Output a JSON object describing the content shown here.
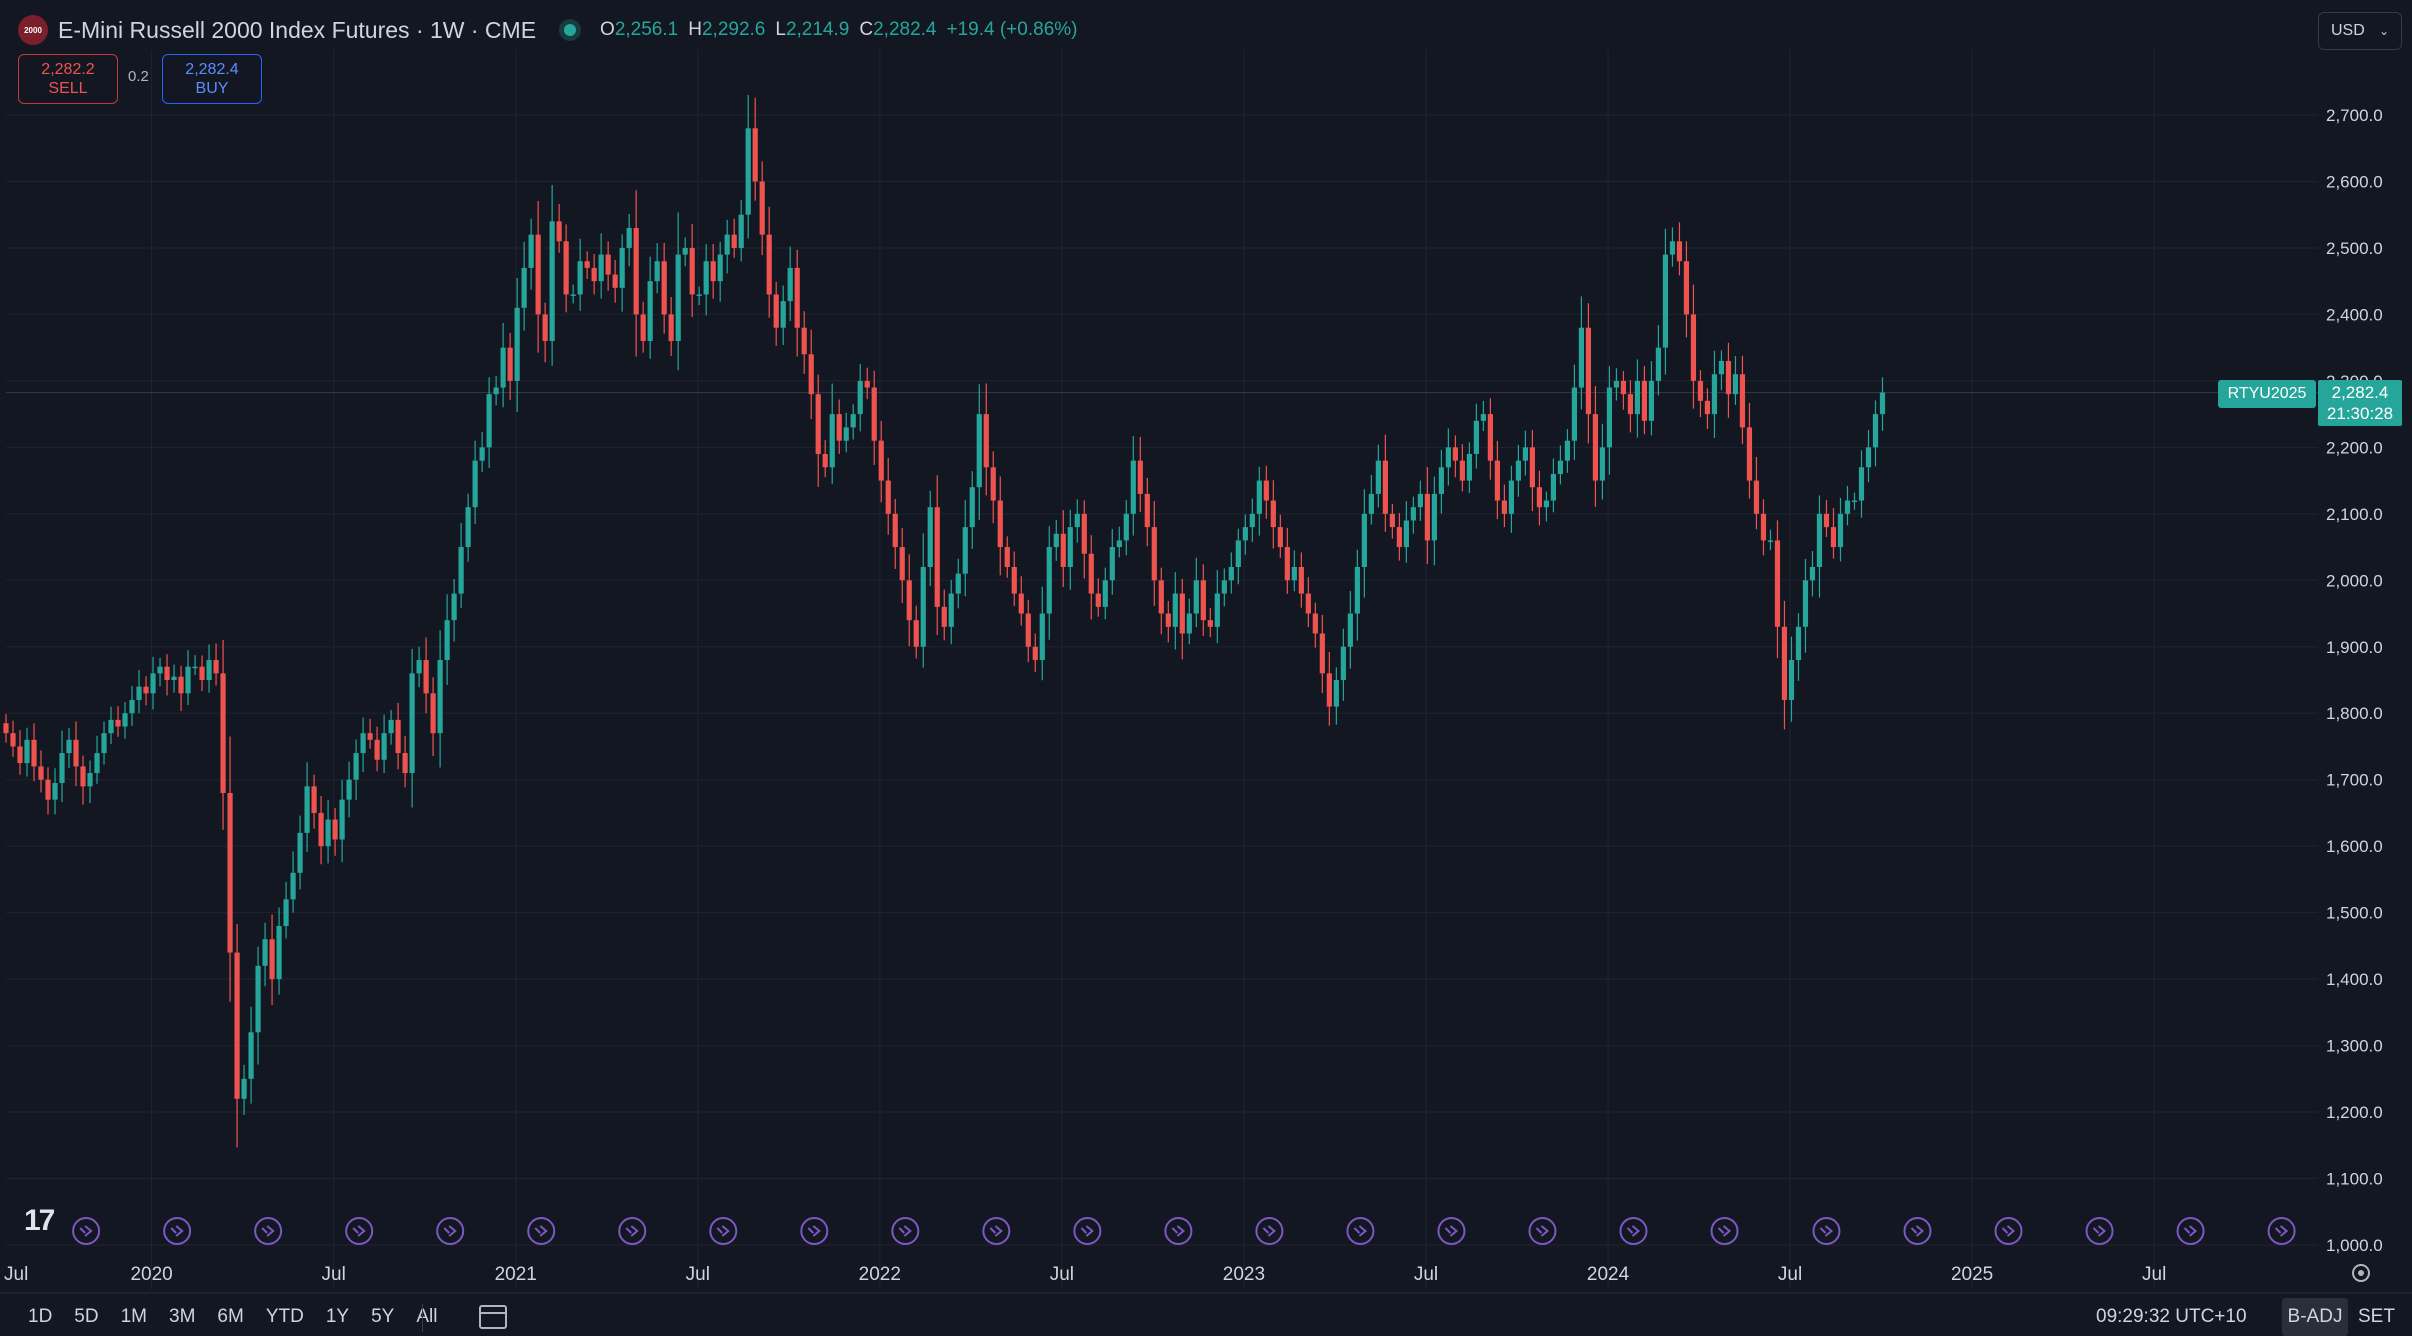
{
  "header": {
    "symbol_logo_text": "2000",
    "title": "E-Mini Russell 2000 Index Futures · 1W · CME",
    "ohlc": {
      "o_label": "O",
      "o_value": "2,256.1",
      "h_label": "H",
      "h_value": "2,292.6",
      "l_label": "L",
      "l_value": "2,214.9",
      "c_label": "C",
      "c_value": "2,282.4",
      "change": "+19.4 (+0.86%)"
    }
  },
  "trade": {
    "sell_price": "2,282.2",
    "sell_label": "SELL",
    "spread": "0.2",
    "buy_price": "2,282.4",
    "buy_label": "BUY"
  },
  "currency": "USD",
  "price_tag": {
    "symbol": "RTYU2025",
    "price": "2,282.4",
    "countdown": "21:30:28"
  },
  "bottom": {
    "ranges": [
      "1D",
      "5D",
      "1M",
      "3M",
      "6M",
      "YTD",
      "1Y",
      "5Y",
      "All"
    ],
    "time": "09:29:32 UTC+10",
    "adj": "B-ADJ",
    "session": "SET"
  },
  "colors": {
    "up": "#26a69a",
    "down": "#ef5350",
    "background": "#131722",
    "grid": "#1f2430",
    "event": "#7e57c2"
  },
  "chart_data": {
    "type": "candlestick",
    "interval": "1W",
    "ylim": [
      1000,
      2750
    ],
    "yticks": [
      1000,
      1100,
      1200,
      1300,
      1400,
      1500,
      1600,
      1700,
      1800,
      1900,
      2000,
      2100,
      2200,
      2300,
      2400,
      2500,
      2600,
      2700
    ],
    "ytick_labels": [
      "1,000.0",
      "1,100.0",
      "1,200.0",
      "1,300.0",
      "1,400.0",
      "1,500.0",
      "1,600.0",
      "1,700.0",
      "1,800.0",
      "1,900.0",
      "2,000.0",
      "2,100.0",
      "2,200.0",
      "2,300.0",
      "2,400.0",
      "2,500.0",
      "2,600.0",
      "2,700.0"
    ],
    "xlim": [
      2019.6,
      2025.95
    ],
    "xticks": [
      {
        "t": 2019.5,
        "label": "Jul"
      },
      {
        "t": 2020.0,
        "label": "2020"
      },
      {
        "t": 2020.5,
        "label": "Jul"
      },
      {
        "t": 2021.0,
        "label": "2021"
      },
      {
        "t": 2021.5,
        "label": "Jul"
      },
      {
        "t": 2022.0,
        "label": "2022"
      },
      {
        "t": 2022.5,
        "label": "Jul"
      },
      {
        "t": 2023.0,
        "label": "2023"
      },
      {
        "t": 2023.5,
        "label": "Jul"
      },
      {
        "t": 2024.0,
        "label": "2024"
      },
      {
        "t": 2024.5,
        "label": "Jul"
      },
      {
        "t": 2025.0,
        "label": "2025"
      },
      {
        "t": 2025.5,
        "label": "Jul"
      }
    ],
    "grid": true,
    "last_price": 2282.4,
    "event_markers": [
      2019.82,
      2020.07,
      2020.32,
      2020.57,
      2020.82,
      2021.07,
      2021.32,
      2021.57,
      2021.82,
      2022.07,
      2022.32,
      2022.57,
      2022.82,
      2023.07,
      2023.32,
      2023.57,
      2023.82,
      2024.07,
      2024.32,
      2024.6,
      2024.85,
      2025.1,
      2025.35,
      2025.6,
      2025.85
    ],
    "closes": [
      1770,
      1750,
      1725,
      1760,
      1720,
      1700,
      1670,
      1695,
      1740,
      1760,
      1720,
      1690,
      1710,
      1740,
      1770,
      1790,
      1780,
      1800,
      1820,
      1840,
      1830,
      1860,
      1870,
      1850,
      1855,
      1830,
      1870,
      1870,
      1850,
      1880,
      1860,
      1680,
      1440,
      1220,
      1250,
      1320,
      1420,
      1460,
      1400,
      1480,
      1520,
      1560,
      1620,
      1690,
      1650,
      1600,
      1640,
      1610,
      1670,
      1700,
      1740,
      1770,
      1760,
      1730,
      1770,
      1790,
      1740,
      1710,
      1860,
      1880,
      1830,
      1770,
      1880,
      1940,
      1980,
      2050,
      2110,
      2180,
      2200,
      2280,
      2290,
      2350,
      2300,
      2410,
      2470,
      2520,
      2400,
      2360,
      2540,
      2510,
      2430,
      2430,
      2480,
      2470,
      2450,
      2490,
      2460,
      2440,
      2500,
      2530,
      2400,
      2360,
      2450,
      2480,
      2400,
      2360,
      2490,
      2500,
      2430,
      2430,
      2480,
      2450,
      2490,
      2520,
      2500,
      2550,
      2680,
      2600,
      2520,
      2430,
      2380,
      2420,
      2470,
      2380,
      2340,
      2280,
      2190,
      2170,
      2250,
      2210,
      2230,
      2250,
      2300,
      2290,
      2210,
      2150,
      2100,
      2050,
      2000,
      1940,
      1900,
      2020,
      2110,
      1960,
      1930,
      1980,
      2010,
      2080,
      2140,
      2250,
      2170,
      2120,
      2050,
      2020,
      1980,
      1950,
      1900,
      1880,
      1950,
      2050,
      2070,
      2020,
      2080,
      2100,
      2040,
      1980,
      1960,
      2000,
      2050,
      2060,
      2100,
      2180,
      2130,
      2080,
      2000,
      1950,
      1930,
      1980,
      1920,
      1950,
      2000,
      1940,
      1930,
      1980,
      2000,
      2020,
      2060,
      2080,
      2100,
      2150,
      2120,
      2080,
      2050,
      2000,
      2020,
      1980,
      1950,
      1920,
      1860,
      1810,
      1850,
      1900,
      1950,
      2020,
      2100,
      2130,
      2180,
      2100,
      2080,
      2050,
      2090,
      2110,
      2130,
      2060,
      2130,
      2170,
      2200,
      2180,
      2150,
      2190,
      2240,
      2250,
      2180,
      2120,
      2100,
      2150,
      2180,
      2200,
      2140,
      2110,
      2120,
      2160,
      2180,
      2210,
      2290,
      2380,
      2250,
      2150,
      2200,
      2290,
      2300,
      2280,
      2250,
      2300,
      2240,
      2300,
      2350,
      2490,
      2510,
      2480,
      2400,
      2300,
      2270,
      2250,
      2310,
      2330,
      2280,
      2310,
      2230,
      2150,
      2100,
      2060,
      2060,
      1930,
      1820,
      1880,
      1930,
      2000,
      2020,
      2100,
      2080,
      2050,
      2100,
      2120,
      2120,
      2170,
      2200,
      2250,
      2282.4
    ]
  }
}
